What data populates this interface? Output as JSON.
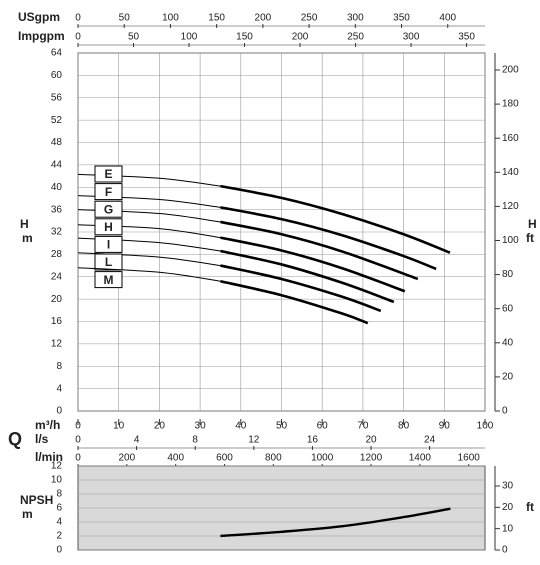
{
  "chart_data": [
    {
      "type": "line",
      "q_label": "Q",
      "y_label": "H",
      "y_unit": "m",
      "y2_label": "H",
      "y2_unit": "ft",
      "x_label": "m³/h",
      "xlim": [
        0,
        100
      ],
      "xticks": [
        0,
        10,
        20,
        30,
        40,
        50,
        60,
        70,
        80,
        90,
        100
      ],
      "ylim": [
        0,
        64
      ],
      "yticks": [
        0,
        4,
        8,
        12,
        16,
        20,
        24,
        28,
        32,
        36,
        40,
        44,
        48,
        52,
        56,
        60,
        64
      ],
      "y2lim": [
        0,
        209.97
      ],
      "y2ticks": [
        0,
        20,
        40,
        60,
        80,
        100,
        120,
        140,
        160,
        180,
        200
      ],
      "extra_x_axes": [
        {
          "label": "USgpm",
          "position": "top",
          "lim": [
            0,
            440.3
          ],
          "ticks": [
            0,
            50,
            100,
            150,
            200,
            250,
            300,
            350,
            400
          ]
        },
        {
          "label": "Impgpm",
          "position": "top",
          "lim": [
            0,
            366.6
          ],
          "ticks": [
            0,
            50,
            100,
            150,
            200,
            250,
            300,
            350
          ]
        },
        {
          "label": "l/s",
          "position": "bottom",
          "lim": [
            0,
            27.78
          ],
          "ticks": [
            0,
            4,
            8,
            12,
            16,
            20,
            24
          ]
        },
        {
          "label": "l/min",
          "position": "bottom",
          "lim": [
            0,
            1666.7
          ],
          "ticks": [
            0,
            200,
            400,
            600,
            800,
            1000,
            1200,
            1400,
            1600
          ]
        }
      ],
      "grid": true,
      "background": "#ffffff",
      "bold_from": 35,
      "series": [
        {
          "name": "E",
          "color": "#000000",
          "x": [
            0,
            20,
            35,
            50,
            65,
            80,
            91.4
          ],
          "values": [
            42.3,
            41.6,
            40.2,
            38.1,
            35.2,
            31.6,
            28.3
          ]
        },
        {
          "name": "F",
          "color": "#000000",
          "x": [
            0,
            20,
            35,
            50,
            65,
            80,
            88
          ],
          "values": [
            38.5,
            37.8,
            36.4,
            34.3,
            31.4,
            27.7,
            25.4
          ]
        },
        {
          "name": "G",
          "color": "#000000",
          "x": [
            0,
            20,
            35,
            50,
            65,
            83.5
          ],
          "values": [
            36,
            35.3,
            33.8,
            31.6,
            28.5,
            23.6
          ]
        },
        {
          "name": "H",
          "color": "#000000",
          "x": [
            0,
            20,
            35,
            50,
            65,
            80.3
          ],
          "values": [
            33.3,
            32.6,
            31,
            28.7,
            25.5,
            21.4
          ]
        },
        {
          "name": "I",
          "color": "#000000",
          "x": [
            0,
            20,
            35,
            50,
            65,
            77.6
          ],
          "values": [
            30.9,
            30.1,
            28.6,
            26.2,
            22.9,
            19.5
          ]
        },
        {
          "name": "L",
          "color": "#000000",
          "x": [
            0,
            20,
            35,
            50,
            65,
            74.4
          ],
          "values": [
            28.3,
            27.5,
            26,
            23.6,
            20.4,
            17.9
          ]
        },
        {
          "name": "M",
          "color": "#000000",
          "x": [
            0,
            20,
            35,
            50,
            65,
            71.2
          ],
          "values": [
            25.6,
            24.8,
            23.2,
            20.7,
            17.4,
            15.7
          ]
        }
      ]
    },
    {
      "type": "line",
      "y_label": "NPSH",
      "y_unit": "m",
      "y2_unit": "ft",
      "xlim": [
        0,
        100
      ],
      "ylim": [
        0,
        12
      ],
      "yticks": [
        0,
        2,
        4,
        6,
        8,
        10,
        12
      ],
      "y2lim": [
        0,
        39.37
      ],
      "y2ticks": [
        0,
        10,
        20,
        30
      ],
      "grid": true,
      "background": "#d9d9d9",
      "series": [
        {
          "color": "#000000",
          "x": [
            35,
            50,
            65,
            80,
            91.5
          ],
          "values": [
            2,
            2.6,
            3.4,
            4.7,
            5.9
          ]
        }
      ]
    }
  ]
}
